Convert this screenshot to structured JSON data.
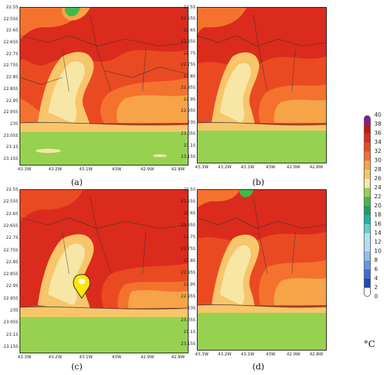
{
  "panels": [
    {
      "caption": "(a)"
    },
    {
      "caption": "(b)"
    },
    {
      "caption": "(c)"
    },
    {
      "caption": "(d)"
    }
  ],
  "y_ticks": [
    "22.5S",
    "22.55S",
    "22.6S",
    "22.65S",
    "22.7S",
    "22.75S",
    "22.8S",
    "22.85S",
    "22.9S",
    "22.95S",
    "23S",
    "23.05S",
    "23.1S",
    "23.15S"
  ],
  "x_ticks": [
    "43.3W",
    "43.2W",
    "43.1W",
    "43W",
    "42.9W",
    "42.8W"
  ],
  "colorbar": {
    "labels": [
      "40",
      "38",
      "36",
      "34",
      "32",
      "30",
      "28",
      "26",
      "24",
      "22",
      "20",
      "18",
      "16",
      "14",
      "12",
      "10",
      "8",
      "6",
      "4",
      "2",
      "0"
    ],
    "colors": [
      "#7a1fa3",
      "#c61414",
      "#db2b1c",
      "#ea4a22",
      "#f4722e",
      "#f7a347",
      "#f8c56a",
      "#f7e6a6",
      "#96d24f",
      "#42b94a",
      "#19a068",
      "#18b6a6",
      "#5fd0cb",
      "#a7e6f2",
      "#b9dbf6",
      "#8fbdf1",
      "#5f9ae6",
      "#3a6fd5",
      "#2048b9",
      "#fdfdfd"
    ],
    "unit": "°C"
  }
}
